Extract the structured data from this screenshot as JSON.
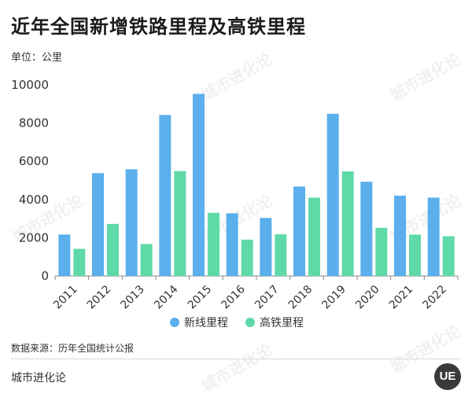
{
  "header": {
    "title": "近年全国新增铁路里程及高铁里程",
    "unit": "单位：公里"
  },
  "footer": {
    "source": "数据来源：历年全国统计公报",
    "brand": "城市进化论",
    "logo": "UE"
  },
  "watermark": {
    "text": "城市进化论"
  },
  "colors": {
    "series1": "#5aafec",
    "series2": "#5fd9a8",
    "axis": "#888888",
    "text": "#333333"
  },
  "chart_data": {
    "type": "bar",
    "title": "",
    "xlabel": "",
    "ylabel": "",
    "ylim": [
      0,
      10000
    ],
    "yticks": [
      0,
      2000,
      4000,
      6000,
      8000,
      10000
    ],
    "grid": false,
    "legend_position": "bottom",
    "categories": [
      "2011",
      "2012",
      "2013",
      "2014",
      "2015",
      "2016",
      "2017",
      "2018",
      "2019",
      "2020",
      "2021",
      "2022"
    ],
    "series": [
      {
        "name": "新线里程",
        "values": [
          2167,
          5382,
          5586,
          8427,
          9531,
          3281,
          3038,
          4683,
          8489,
          4933,
          4208,
          4100
        ]
      },
      {
        "name": "高铁里程",
        "values": [
          1421,
          2723,
          1672,
          5491,
          3306,
          1903,
          2182,
          4100,
          5474,
          2521,
          2168,
          2082
        ]
      }
    ]
  }
}
